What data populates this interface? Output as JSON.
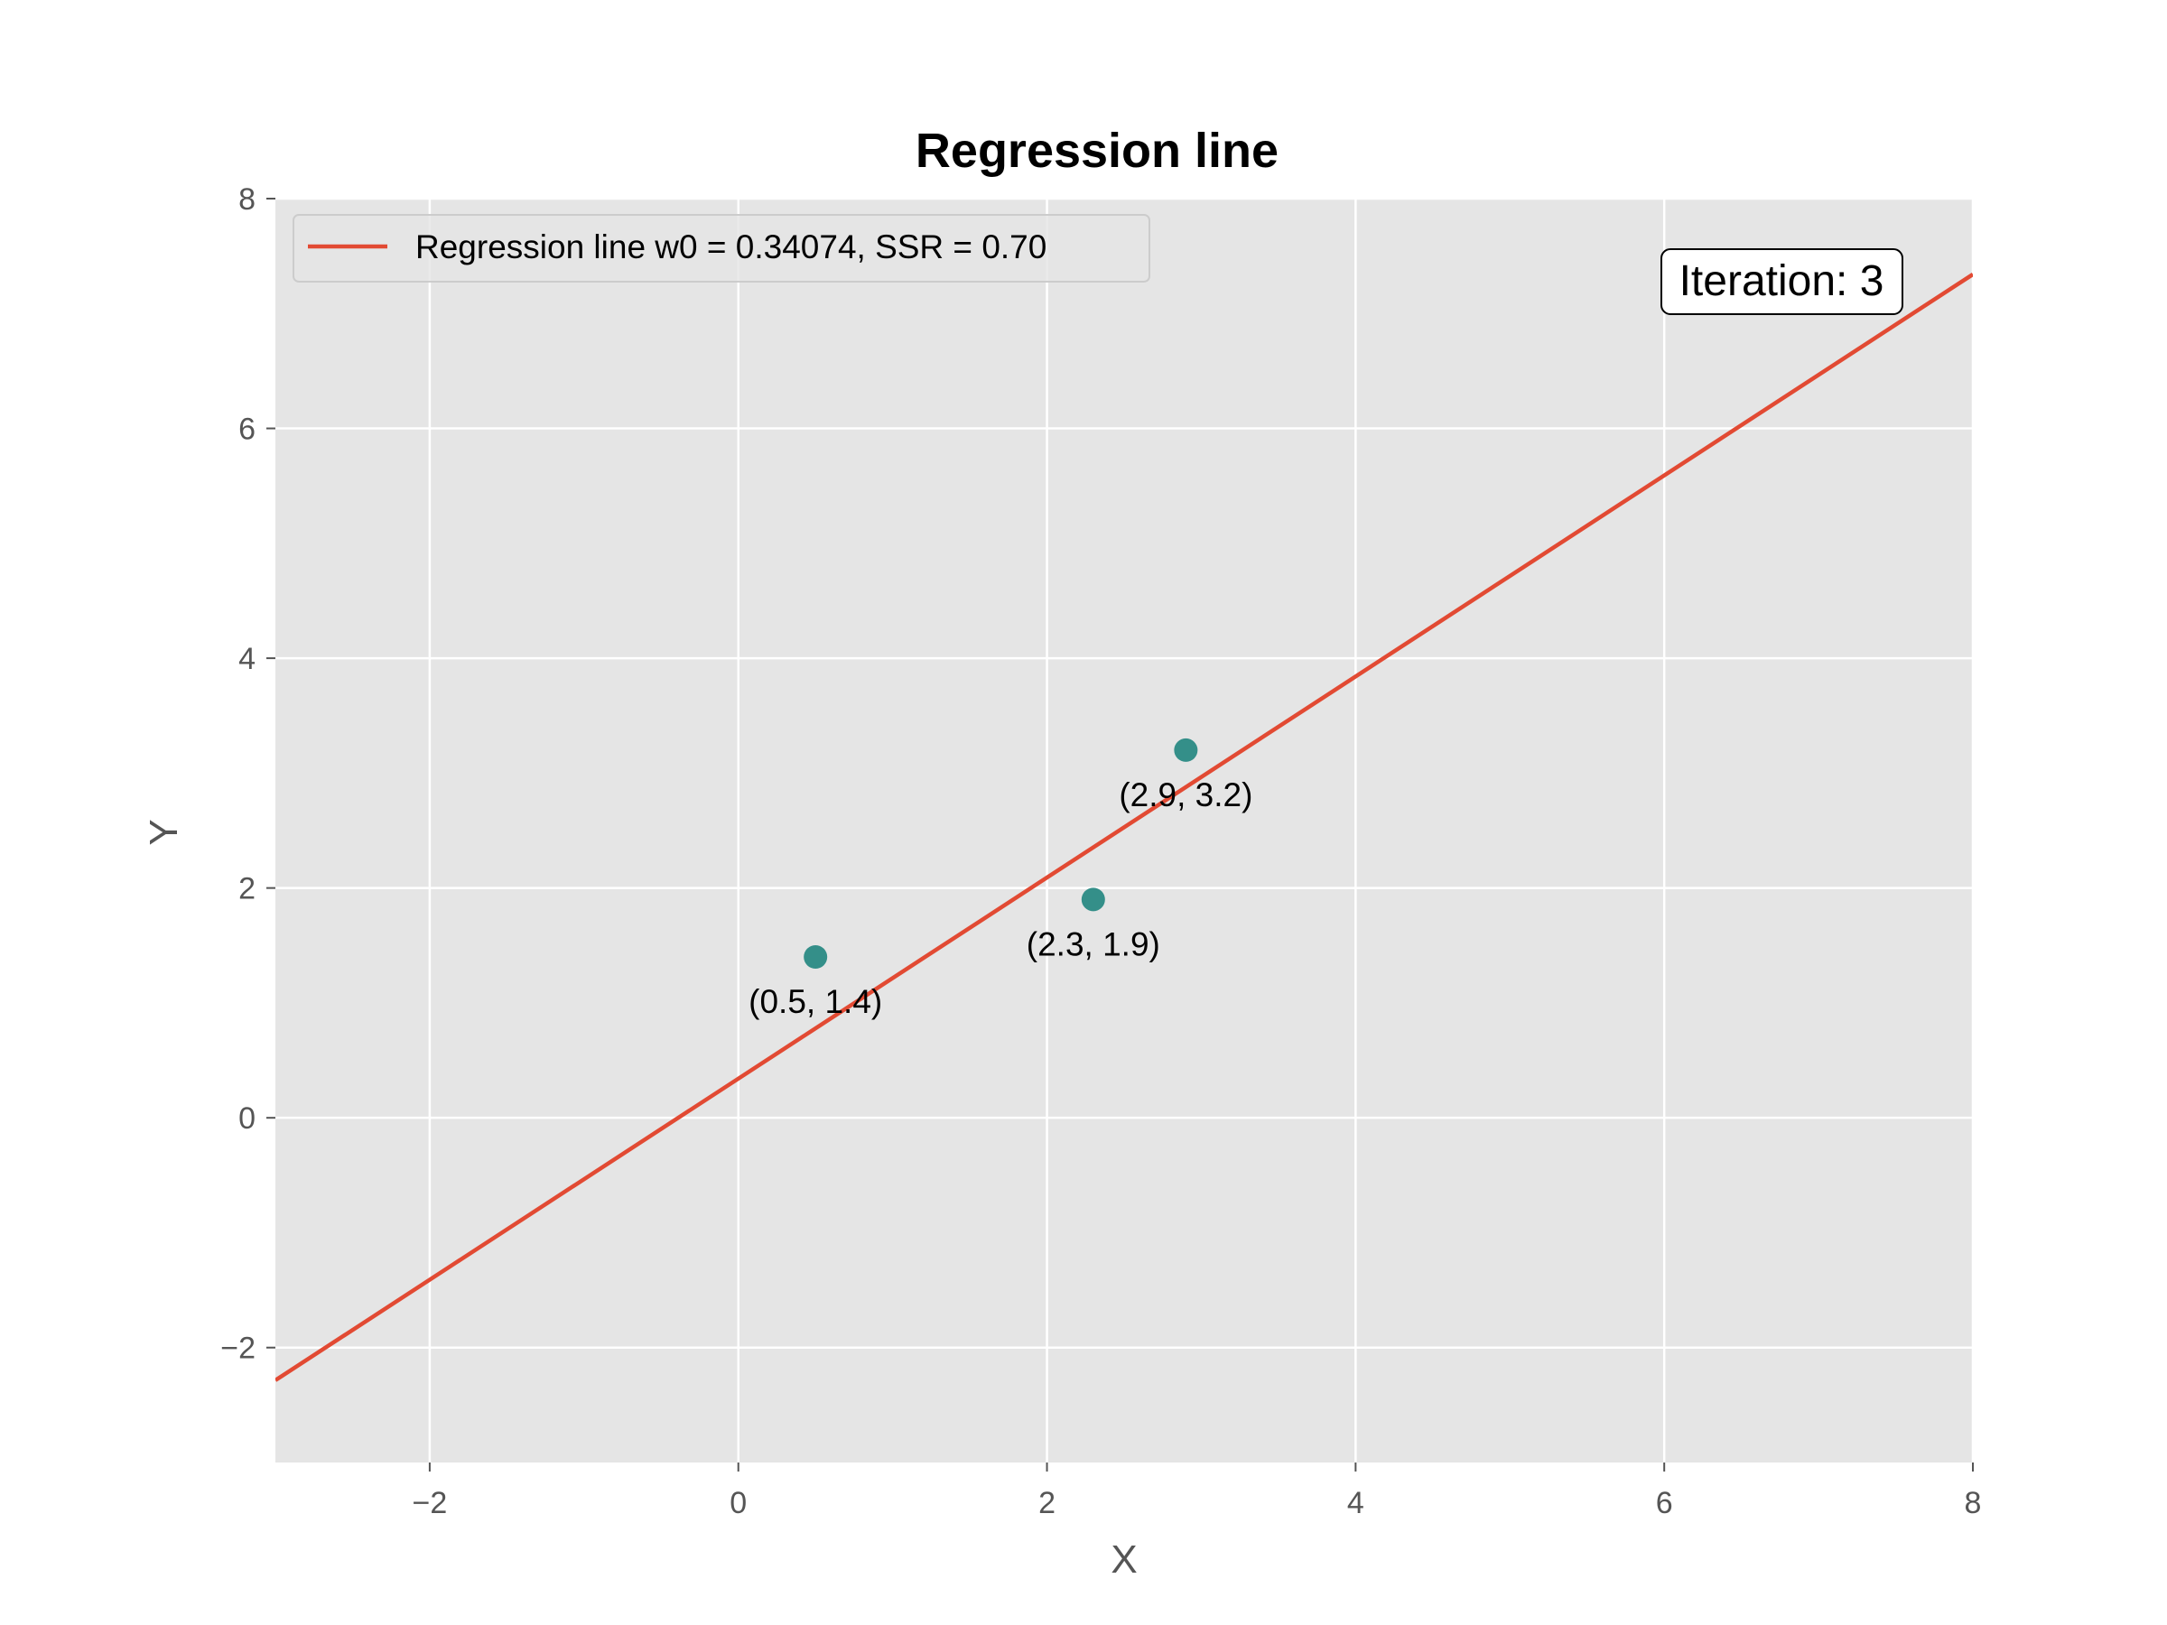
{
  "chart_data": {
    "type": "scatter",
    "title": "Regression line",
    "xlabel": "X",
    "ylabel": "Y",
    "xlim": [
      -3,
      8
    ],
    "ylim": [
      -3,
      8
    ],
    "xticks": [
      -2,
      0,
      2,
      4,
      6,
      8
    ],
    "yticks": [
      -2,
      0,
      2,
      4,
      6,
      8
    ],
    "xtick_labels": [
      "−2",
      "0",
      "2",
      "4",
      "6",
      "8"
    ],
    "ytick_labels": [
      "−2",
      "0",
      "2",
      "4",
      "6",
      "8"
    ],
    "grid": true,
    "legend_position": "top-left",
    "points": [
      {
        "x": 0.5,
        "y": 1.4,
        "label": "(0.5, 1.4)"
      },
      {
        "x": 2.3,
        "y": 1.9,
        "label": "(2.3, 1.9)"
      },
      {
        "x": 2.9,
        "y": 3.2,
        "label": "(2.9, 3.2)"
      }
    ],
    "line": {
      "name": "Regression line w0 = 0.34074, SSR = 0.70",
      "intercept": 0.34074,
      "slope": 0.875
    },
    "annotation": "Iteration: 3",
    "colors": {
      "line": "#e24a33",
      "points": "#348f89",
      "plot_background": "#e5e5e5"
    }
  }
}
